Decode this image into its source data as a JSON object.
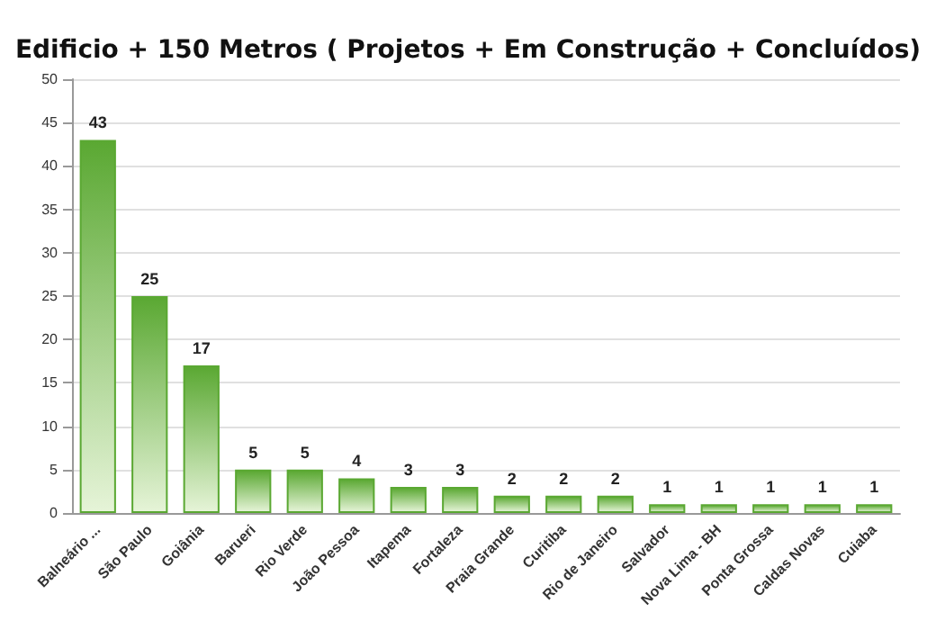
{
  "chart_data": {
    "type": "bar",
    "title": "Edificio + 150 Metros ( Projetos + Em Construção + Concluídos)",
    "categories": [
      "Balneário ...",
      "São Paulo",
      "Goiânia",
      "Barueri",
      "Rio Verde",
      "João Pessoa",
      "Itapema",
      "Fortaleza",
      "Praia Grande",
      "Curitiba",
      "Rio de Janeiro",
      "Salvador",
      "Nova Lima - BH",
      "Ponta Grossa",
      "Caldas Novas",
      "Cuiaba"
    ],
    "values": [
      43,
      25,
      17,
      5,
      5,
      4,
      3,
      3,
      2,
      2,
      2,
      1,
      1,
      1,
      1,
      1
    ],
    "color": "#5aa832",
    "ylim": [
      0,
      50
    ],
    "yticks": [
      0,
      5,
      10,
      15,
      20,
      25,
      30,
      35,
      40,
      45,
      50
    ],
    "grid": "y",
    "data_labels": true
  }
}
